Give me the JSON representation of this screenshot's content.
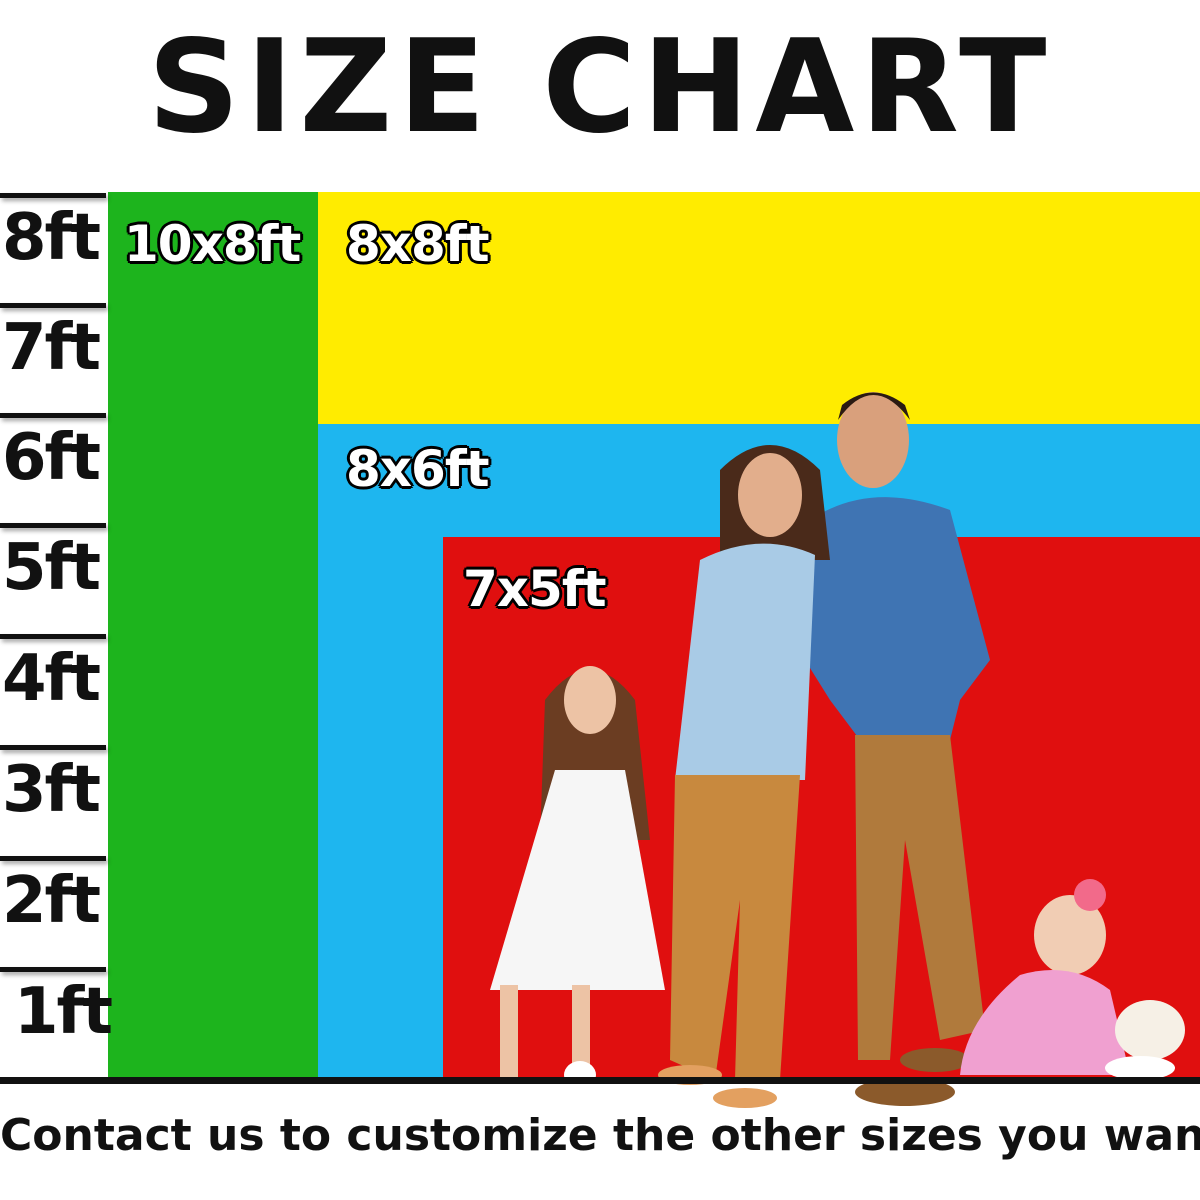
{
  "title": "SIZE CHART",
  "scale": {
    "labels": [
      "8ft",
      "7ft",
      "6ft",
      "5ft",
      "4ft",
      "3ft",
      "2ft",
      "1ft"
    ]
  },
  "sizes": [
    {
      "label": "10x8ft",
      "color": "#1db41d"
    },
    {
      "label": "8x8ft",
      "color": "#ffec00"
    },
    {
      "label": "8x6ft",
      "color": "#1eb6ef"
    },
    {
      "label": "7x5ft",
      "color": "#e00f0f"
    }
  ],
  "figures": [
    "man",
    "woman",
    "girl",
    "baby"
  ],
  "footer": "Contact us to customize the other sizes you want!"
}
